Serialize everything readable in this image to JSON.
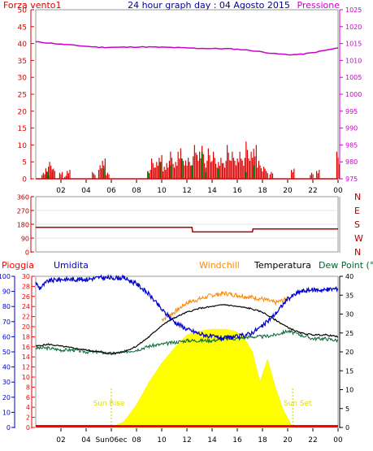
{
  "header": {
    "left_label": "Forza vento1",
    "title": "24 hour graph day : 04 Agosto 2015",
    "right_label": "Pressione"
  },
  "x_ticks": [
    "02",
    "04",
    "06",
    "08",
    "10",
    "12",
    "14",
    "16",
    "18",
    "20",
    "22",
    "00"
  ],
  "panel3_labels": {
    "rain": "Pioggia",
    "humidity": "Umidita",
    "windchill": "Windchill",
    "temperature": "Temperatura",
    "dewpoint": "Dew Point (°C"
  },
  "sun_labels": {
    "rise": "Sun Rise",
    "set": "Sun Set"
  },
  "panel3_x_special": {
    "sunrise_tick": "Sun06ec"
  },
  "colors": {
    "wind": "#dd0000",
    "gust": "#007700",
    "pressure": "#cc00cc",
    "direction": "#aa0000",
    "humidity": "#0000cc",
    "windchill": "#ff8800",
    "temperature": "#000000",
    "dewpoint": "#006633",
    "solar": "#ffff00",
    "rain": "#ff0000",
    "title": "#000099",
    "axis_grey": "#999999"
  },
  "chart_data": [
    {
      "type": "bar",
      "title": "24 hour graph day : 04 Agosto 2015",
      "ylim_left": [
        0,
        50
      ],
      "yticks_left": [
        "0",
        "5",
        "10",
        "15",
        "20",
        "25",
        "30",
        "35",
        "40",
        "45",
        "50"
      ],
      "ylim_right": [
        975,
        1025
      ],
      "yticks_right": [
        "975",
        "980",
        "985",
        "990",
        "995",
        "1000",
        "1005",
        "1010",
        "1015",
        "1020",
        "1025"
      ],
      "xlim_hours": [
        0,
        24
      ],
      "series": [
        {
          "name": "Pressione",
          "kind": "line",
          "x": [
            0,
            1,
            2,
            3,
            4,
            5,
            6,
            7,
            8,
            9,
            10,
            11,
            12,
            13,
            14,
            15,
            16,
            17,
            18,
            19,
            20,
            21,
            22,
            23,
            24
          ],
          "values": [
            1015.5,
            1015.2,
            1014.8,
            1014.5,
            1014.2,
            1013.9,
            1013.9,
            1013.9,
            1014.0,
            1014.0,
            1013.9,
            1013.8,
            1013.7,
            1013.6,
            1013.5,
            1013.5,
            1013.3,
            1013.0,
            1012.5,
            1012.0,
            1011.7,
            1011.8,
            1012.3,
            1013.0,
            1013.7
          ]
        },
        {
          "name": "Forza vento1",
          "kind": "bar",
          "x": [
            0.5,
            0.8,
            1.1,
            1.3,
            1.9,
            2.3,
            2.5,
            4.5,
            5.0,
            5.3,
            5.6,
            8.9,
            9.2,
            9.5,
            9.8,
            10.1,
            10.4,
            10.7,
            11.0,
            11.3,
            11.6,
            11.9,
            12.2,
            12.5,
            12.8,
            13.1,
            13.4,
            13.7,
            14.0,
            14.3,
            14.6,
            14.9,
            15.2,
            15.5,
            15.8,
            16.1,
            16.4,
            16.7,
            17.0,
            17.3,
            17.6,
            17.9,
            18.2,
            18.6,
            20.3,
            21.8,
            22.3,
            23.9
          ],
          "values": [
            2,
            4,
            5,
            3,
            2,
            1,
            3,
            2,
            4,
            6,
            2,
            3,
            6,
            5,
            7,
            4,
            6,
            8,
            5,
            9,
            6,
            7,
            5,
            10,
            8,
            11,
            6,
            9,
            8,
            5,
            7,
            6,
            10,
            8,
            6,
            9,
            7,
            11,
            8,
            10,
            6,
            4,
            3,
            2,
            3,
            2,
            3,
            8
          ]
        },
        {
          "name": "gust",
          "kind": "bar",
          "x": [
            0.9,
            1.0,
            5.4,
            8.9,
            9.9,
            10.7,
            11.6,
            12.4,
            13.2,
            13.5,
            14.5,
            16.7,
            17.3
          ],
          "values": [
            2,
            1,
            3,
            2,
            5,
            4,
            6,
            4,
            8,
            2,
            3,
            2,
            4
          ]
        }
      ]
    },
    {
      "type": "line",
      "ylim": [
        0,
        360
      ],
      "yticks_left": [
        "0",
        "90",
        "180",
        "270",
        "360"
      ],
      "yticks_right": [
        "N",
        "W",
        "S",
        "E",
        "N"
      ],
      "series": [
        {
          "name": "direction",
          "x": [
            0,
            12.4,
            12.45,
            17.2,
            17.25,
            24
          ],
          "values": [
            160,
            160,
            130,
            130,
            150,
            150
          ]
        }
      ]
    },
    {
      "type": "line",
      "ylim_rain": [
        0,
        30
      ],
      "yticks_rain": [
        "0",
        "2",
        "4",
        "6",
        "8",
        "10",
        "12",
        "14",
        "16",
        "18",
        "20",
        "22",
        "24",
        "26",
        "28",
        "30"
      ],
      "ylim_humidity": [
        0,
        100
      ],
      "yticks_humidity": [
        "0",
        "10",
        "20",
        "30",
        "40",
        "50",
        "60",
        "70",
        "80",
        "90",
        "100"
      ],
      "ylim_temp": [
        0,
        40
      ],
      "yticks_temp": [
        "0",
        "5",
        "10",
        "15",
        "20",
        "25",
        "30",
        "35",
        "40"
      ],
      "sunrise_hour": 6.0,
      "sunset_hour": 20.4,
      "series": [
        {
          "name": "Umidita",
          "x": [
            0,
            0.3,
            1,
            2,
            3,
            4,
            5,
            6,
            7,
            8,
            9,
            10,
            11,
            12,
            13,
            14,
            15,
            16,
            17,
            18,
            19,
            20,
            21,
            22,
            23,
            24
          ],
          "values": [
            96,
            92,
            97,
            98,
            98,
            98,
            99,
            99,
            99,
            95,
            88,
            78,
            70,
            65,
            62,
            60,
            59,
            60,
            62,
            67,
            75,
            85,
            90,
            91,
            91,
            92
          ]
        },
        {
          "name": "Windchill",
          "x": [
            10,
            11,
            12,
            13,
            14,
            15,
            16,
            17,
            18,
            19,
            20
          ],
          "values": [
            28.5,
            30.5,
            33,
            34,
            35,
            35.5,
            35,
            34.5,
            34,
            33,
            34
          ]
        },
        {
          "name": "Temperatura",
          "x": [
            0,
            1,
            2,
            3,
            4,
            5,
            6,
            7,
            8,
            9,
            10,
            11,
            12,
            13,
            14,
            15,
            16,
            17,
            18,
            19,
            20,
            21,
            22,
            23,
            24
          ],
          "values": [
            21.5,
            22,
            21.5,
            21,
            20.5,
            20,
            19.5,
            20,
            21.5,
            24,
            27,
            29,
            30.5,
            31.5,
            32,
            32.5,
            32,
            31.5,
            30.5,
            28.5,
            26.5,
            25,
            24.5,
            24.5,
            24
          ]
        },
        {
          "name": "Dew Point",
          "x": [
            0,
            1,
            2,
            3,
            4,
            5,
            6,
            7,
            8,
            9,
            10,
            11,
            12,
            13,
            14,
            15,
            16,
            17,
            18,
            19,
            20,
            21,
            22,
            23,
            24
          ],
          "values": [
            21,
            21,
            20.5,
            20.5,
            20,
            20,
            19.5,
            20,
            20.5,
            21.5,
            22,
            22.5,
            23,
            23,
            23,
            23.5,
            23.5,
            24,
            24,
            24.5,
            25.5,
            24.5,
            23.5,
            23.5,
            23
          ]
        },
        {
          "name": "solar",
          "x": [
            6.0,
            7,
            8,
            9,
            10,
            11,
            12,
            13,
            14,
            15,
            15.8,
            16.5,
            17.2,
            17.8,
            18.4,
            19,
            19.6,
            20.4
          ],
          "values": [
            0,
            1.5,
            6,
            12,
            17,
            21,
            24.5,
            25.5,
            26,
            26,
            25.5,
            24,
            20,
            12,
            18,
            11,
            5,
            0
          ]
        }
      ]
    }
  ]
}
